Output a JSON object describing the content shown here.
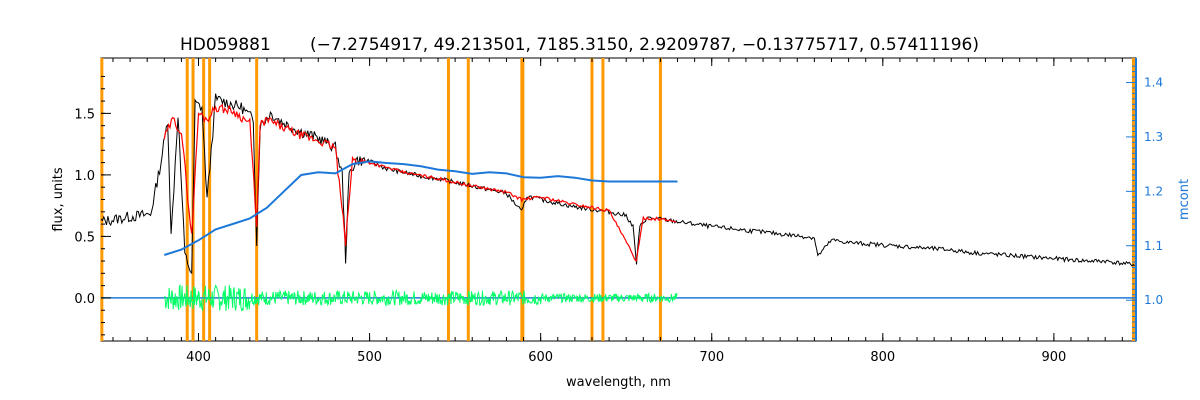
{
  "chart_data": {
    "type": "line",
    "title_id": "HD059881",
    "title_params": "(−7.2754917, 49.213501, 7185.3150, 2.9209787, −0.13775717, 0.57411196)",
    "xlabel": "wavelength, nm",
    "ylabel": "flux, units",
    "y2label": "mcont",
    "xlim": [
      343,
      948
    ],
    "ylim": [
      -0.35,
      1.95
    ],
    "y2lim": [
      0.925,
      1.445
    ],
    "x_ticks": [
      400,
      500,
      600,
      700,
      800,
      900
    ],
    "y_ticks": [
      0.0,
      0.5,
      1.0,
      1.5
    ],
    "y2_ticks": [
      1.0,
      1.1,
      1.2,
      1.3,
      1.4
    ],
    "colors": {
      "observed": "#000000",
      "model": "#ff0000",
      "continuum": "#1e78d8",
      "residual": "#00ff66",
      "mask_lines": "#ff9900",
      "zero_line": "#1e78d8"
    },
    "mask_lines_nm": [
      343.5,
      393.4,
      396.8,
      403.0,
      406.5,
      434.0,
      546.1,
      557.7,
      589.0,
      589.6,
      630.0,
      636.4,
      670.0,
      946.5
    ],
    "observed_series": {
      "name": "observed",
      "x": [
        343,
        360,
        372,
        378,
        382,
        384,
        388,
        392,
        396,
        398,
        402,
        405,
        410,
        418,
        425,
        432,
        434,
        436,
        442,
        450,
        460,
        470,
        480,
        484,
        486,
        488,
        492,
        500,
        510,
        520,
        530,
        540,
        550,
        560,
        570,
        580,
        589,
        592,
        600,
        610,
        620,
        630,
        640,
        650,
        654,
        656,
        658,
        662,
        670,
        680,
        690,
        700,
        720,
        740,
        760,
        762,
        770,
        780,
        800,
        820,
        840,
        850,
        860,
        870,
        880,
        890,
        900,
        910,
        920,
        930,
        940,
        948
      ],
      "y": [
        0.62,
        0.66,
        0.68,
        1.1,
        1.45,
        0.5,
        1.5,
        0.35,
        0.2,
        1.58,
        1.55,
        0.8,
        1.62,
        1.58,
        1.55,
        1.45,
        0.45,
        1.4,
        1.5,
        1.42,
        1.35,
        1.3,
        1.22,
        1.0,
        0.32,
        1.0,
        1.12,
        1.11,
        1.05,
        1.02,
        0.99,
        0.97,
        0.94,
        0.91,
        0.88,
        0.85,
        0.7,
        0.83,
        0.8,
        0.77,
        0.74,
        0.72,
        0.7,
        0.67,
        0.58,
        0.28,
        0.58,
        0.65,
        0.64,
        0.62,
        0.6,
        0.58,
        0.55,
        0.52,
        0.49,
        0.34,
        0.47,
        0.45,
        0.43,
        0.41,
        0.39,
        0.37,
        0.36,
        0.35,
        0.34,
        0.33,
        0.32,
        0.31,
        0.3,
        0.3,
        0.28,
        0.27
      ]
    },
    "model_series": {
      "name": "model",
      "x": [
        380,
        385,
        390,
        396,
        400,
        405,
        410,
        420,
        430,
        434,
        436,
        440,
        450,
        460,
        470,
        480,
        486,
        490,
        500,
        520,
        540,
        560,
        580,
        589,
        600,
        620,
        640,
        656,
        660,
        670,
        680
      ],
      "y": [
        1.3,
        1.45,
        1.35,
        0.5,
        1.5,
        1.45,
        1.55,
        1.52,
        1.42,
        0.6,
        1.4,
        1.45,
        1.38,
        1.32,
        1.28,
        1.22,
        0.45,
        1.12,
        1.1,
        1.02,
        0.97,
        0.91,
        0.86,
        0.8,
        0.82,
        0.76,
        0.71,
        0.3,
        0.65,
        0.64,
        0.62
      ]
    },
    "continuum_series": {
      "name": "mcont",
      "x": [
        380,
        390,
        400,
        410,
        420,
        430,
        440,
        450,
        460,
        470,
        480,
        490,
        500,
        510,
        520,
        530,
        540,
        550,
        560,
        570,
        580,
        590,
        600,
        610,
        620,
        630,
        640,
        650,
        660,
        670,
        680
      ],
      "y": [
        1.083,
        1.093,
        1.11,
        1.13,
        1.14,
        1.15,
        1.17,
        1.2,
        1.23,
        1.235,
        1.233,
        1.25,
        1.255,
        1.252,
        1.25,
        1.246,
        1.24,
        1.237,
        1.232,
        1.235,
        1.233,
        1.226,
        1.225,
        1.228,
        1.225,
        1.22,
        1.218,
        1.218,
        1.218,
        1.218,
        1.218
      ]
    },
    "residual_series": {
      "name": "residual",
      "x_range": [
        380,
        680
      ],
      "center": 0.0,
      "amplitude": 0.06
    },
    "zero_line": {
      "name": "zero",
      "x_range": [
        343,
        948
      ],
      "y": 0.0
    }
  }
}
